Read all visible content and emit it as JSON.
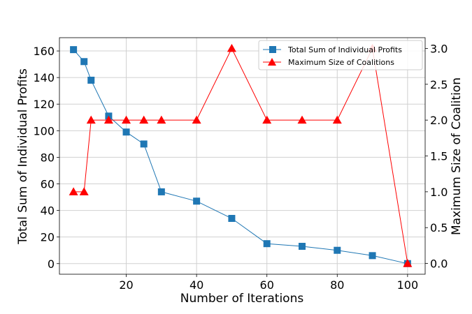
{
  "chart_data": {
    "type": "line",
    "xlabel": "Number of Iterations",
    "ylabel_left": "Total Sum of Individual Profits",
    "ylabel_right": "Maximum Size of Coalition",
    "xlim": [
      1,
      105
    ],
    "ylim_left": [
      -8,
      170
    ],
    "ylim_right": [
      -0.15,
      3.15
    ],
    "xticks": [
      20,
      40,
      60,
      80,
      100
    ],
    "yticks_left": [
      0,
      20,
      40,
      60,
      80,
      100,
      120,
      140,
      160
    ],
    "yticks_right": [
      0.0,
      0.5,
      1.0,
      1.5,
      2.0,
      2.5,
      3.0
    ],
    "grid": true,
    "legend_position": "top-right",
    "series": [
      {
        "name": "Total Sum of Individual Profits",
        "axis": "left",
        "color": "#1f77b4",
        "marker": "square",
        "x": [
          5,
          8,
          10,
          15,
          20,
          25,
          30,
          40,
          50,
          60,
          70,
          80,
          90,
          100
        ],
        "y": [
          161,
          152,
          138,
          111,
          99,
          90,
          54,
          47,
          34,
          15,
          13,
          10,
          6,
          0
        ]
      },
      {
        "name": "Maximum Size of Coalitions",
        "axis": "right",
        "color": "#ff0000",
        "marker": "triangle",
        "x": [
          5,
          8,
          10,
          15,
          20,
          25,
          30,
          40,
          50,
          60,
          70,
          80,
          90,
          100
        ],
        "y": [
          1,
          1,
          2,
          2,
          2,
          2,
          2,
          2,
          3,
          2,
          2,
          2,
          3,
          0
        ]
      }
    ]
  }
}
